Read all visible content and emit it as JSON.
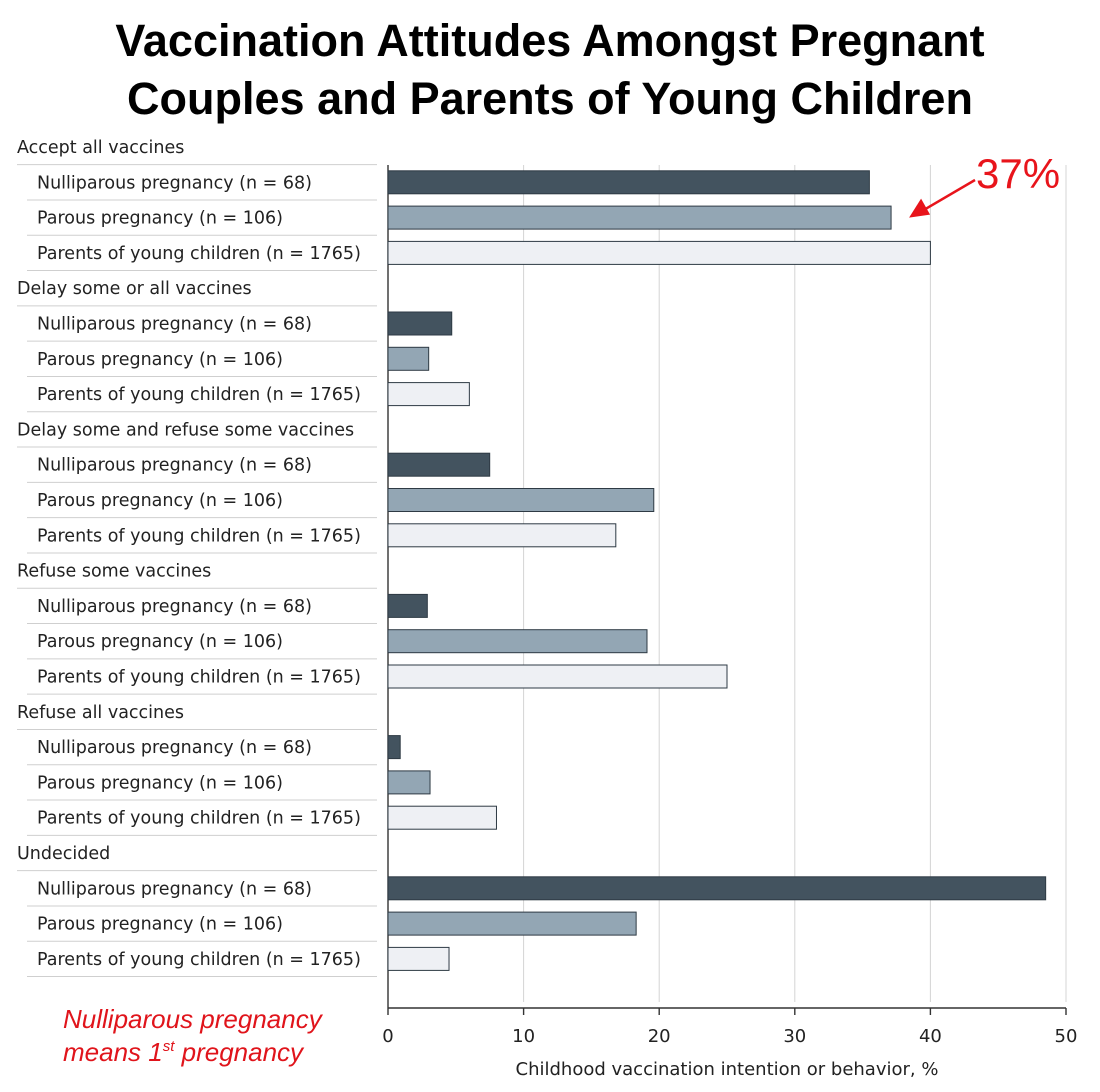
{
  "title_lines": [
    "Vaccination Attitudes Amongst Pregnant",
    "Couples and Parents of Young Children"
  ],
  "annotation": {
    "label": "37%",
    "color": "#e8141b"
  },
  "footnote": {
    "line1": "Nulliparous pregnancy",
    "line2_prefix": "means 1",
    "line2_sup": "st",
    "line2_suffix": " pregnancy",
    "color": "#e0141b"
  },
  "colors": {
    "nulliparous": "#43535f",
    "parous": "#93a6b4",
    "parents": "#eef0f4",
    "grid": "#d4d4d4",
    "divider": "#cfcfcf"
  },
  "chart_data": {
    "type": "bar",
    "orientation": "horizontal",
    "title": "Vaccination Attitudes Amongst Pregnant Couples and Parents of Young Children",
    "xlabel": "Childhood vaccination intention or behavior, %",
    "xlim": [
      0,
      50
    ],
    "xticks": [
      0,
      10,
      20,
      30,
      40,
      50
    ],
    "grid": true,
    "series": [
      {
        "name": "Nulliparous pregnancy (n = 68)",
        "key": "nulliparous",
        "values": [
          35.5,
          4.7,
          7.5,
          2.9,
          0.9,
          48.5
        ]
      },
      {
        "name": "Parous pregnancy (n = 106)",
        "key": "parous",
        "values": [
          37.1,
          3.0,
          19.6,
          19.1,
          3.1,
          18.3
        ]
      },
      {
        "name": "Parents of young children (n = 1765)",
        "key": "parents",
        "values": [
          40.0,
          6.0,
          16.8,
          25.0,
          8.0,
          4.5
        ]
      }
    ],
    "categories": [
      "Accept all vaccines",
      "Delay some or all vaccines",
      "Delay some and refuse some vaccines",
      "Refuse some vaccines",
      "Refuse all vaccines",
      "Undecided"
    ],
    "annotations": [
      {
        "text": "37%",
        "category": "Accept all vaccines",
        "series": "Parous pregnancy (n = 106)"
      }
    ]
  }
}
